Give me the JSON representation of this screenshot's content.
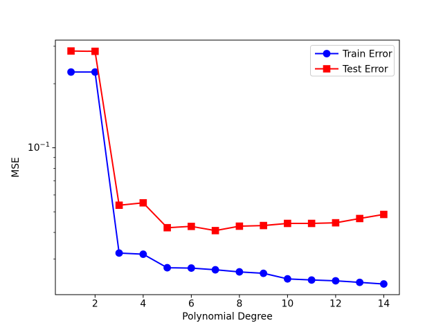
{
  "figure": {
    "background": "#ffffff"
  },
  "chart_data": {
    "type": "line",
    "title": "",
    "xlabel": "Polynomial Degree",
    "ylabel": "MSE",
    "x": [
      1,
      2,
      3,
      4,
      5,
      6,
      7,
      8,
      9,
      10,
      11,
      12,
      13,
      14
    ],
    "series": [
      {
        "name": "Train Error",
        "color": "#0000ff",
        "marker": "circle",
        "values": [
          0.227,
          0.227,
          0.032,
          0.0316,
          0.0273,
          0.0272,
          0.0267,
          0.0261,
          0.0257,
          0.0242,
          0.0239,
          0.0237,
          0.0233,
          0.0229
        ]
      },
      {
        "name": "Test Error",
        "color": "#ff0000",
        "marker": "square",
        "values": [
          0.285,
          0.284,
          0.0537,
          0.0551,
          0.0421,
          0.0427,
          0.0408,
          0.0428,
          0.0431,
          0.0441,
          0.0441,
          0.0444,
          0.0465,
          0.0486
        ]
      }
    ],
    "x_ticks": [
      2,
      4,
      6,
      8,
      10,
      12,
      14
    ],
    "y_scale": "log",
    "y_major_ticks": [
      {
        "value": 0.1,
        "base": "10",
        "exponent": "−1"
      }
    ],
    "xlim": [
      0.35,
      14.65
    ],
    "ylim": [
      0.0204,
      0.3206
    ],
    "grid": false,
    "legend": {
      "position": "upper right",
      "entries": [
        "Train Error",
        "Test Error"
      ]
    }
  },
  "style_colors": {
    "spine": "#000000",
    "tick": "#000000",
    "legend_border": "#cccccc",
    "legend_fill": "#ffffff"
  }
}
